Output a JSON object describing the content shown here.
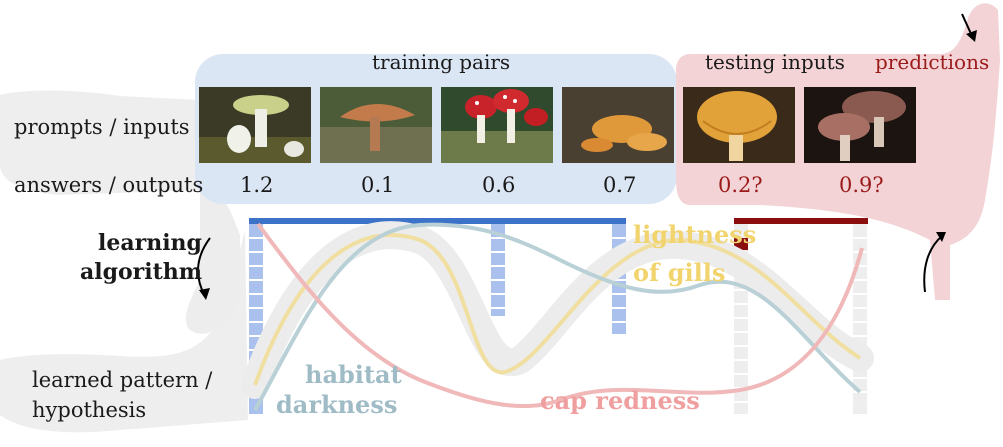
{
  "labels": {
    "training_pairs": "training pairs",
    "testing_inputs": "testing inputs",
    "predictions": "predictions",
    "prompts_inputs": "prompts / inputs",
    "answers_outputs": "answers / outputs",
    "learning": "learning",
    "algorithm": "algorithm",
    "learned_line1": "learned pattern /",
    "learned_line2": "hypothesis"
  },
  "answers": [
    {
      "value": "1.2",
      "kind": "training"
    },
    {
      "value": "0.1",
      "kind": "training"
    },
    {
      "value": "0.6",
      "kind": "training"
    },
    {
      "value": "0.7",
      "kind": "training"
    },
    {
      "value": "0.2?",
      "kind": "testing"
    },
    {
      "value": "0.9?",
      "kind": "testing"
    }
  ],
  "features": {
    "gills_line1": "lightness",
    "gills_line2": "of gills",
    "habitat_line1": "habitat",
    "habitat_line2": "darkness",
    "redness": "cap redness"
  },
  "images": [
    {
      "name": "white-mushroom-image"
    },
    {
      "name": "brown-cap-mushroom-image"
    },
    {
      "name": "red-fly-agaric-image"
    },
    {
      "name": "orange-bracket-mushroom-image"
    },
    {
      "name": "yellow-gills-mushroom-image"
    },
    {
      "name": "brown-cluster-mushroom-image"
    }
  ],
  "colors": {
    "training_bar": "#3c73c8",
    "testing_bar": "#8b0e0e",
    "training_region": "#dbe6f5",
    "testing_region": "#f3d3d5",
    "gills_curve": "#f0dfa0",
    "habitat_curve": "#b8d0d6",
    "redness_curve": "#f0b8b8",
    "prediction_text": "#9b1b1b"
  }
}
